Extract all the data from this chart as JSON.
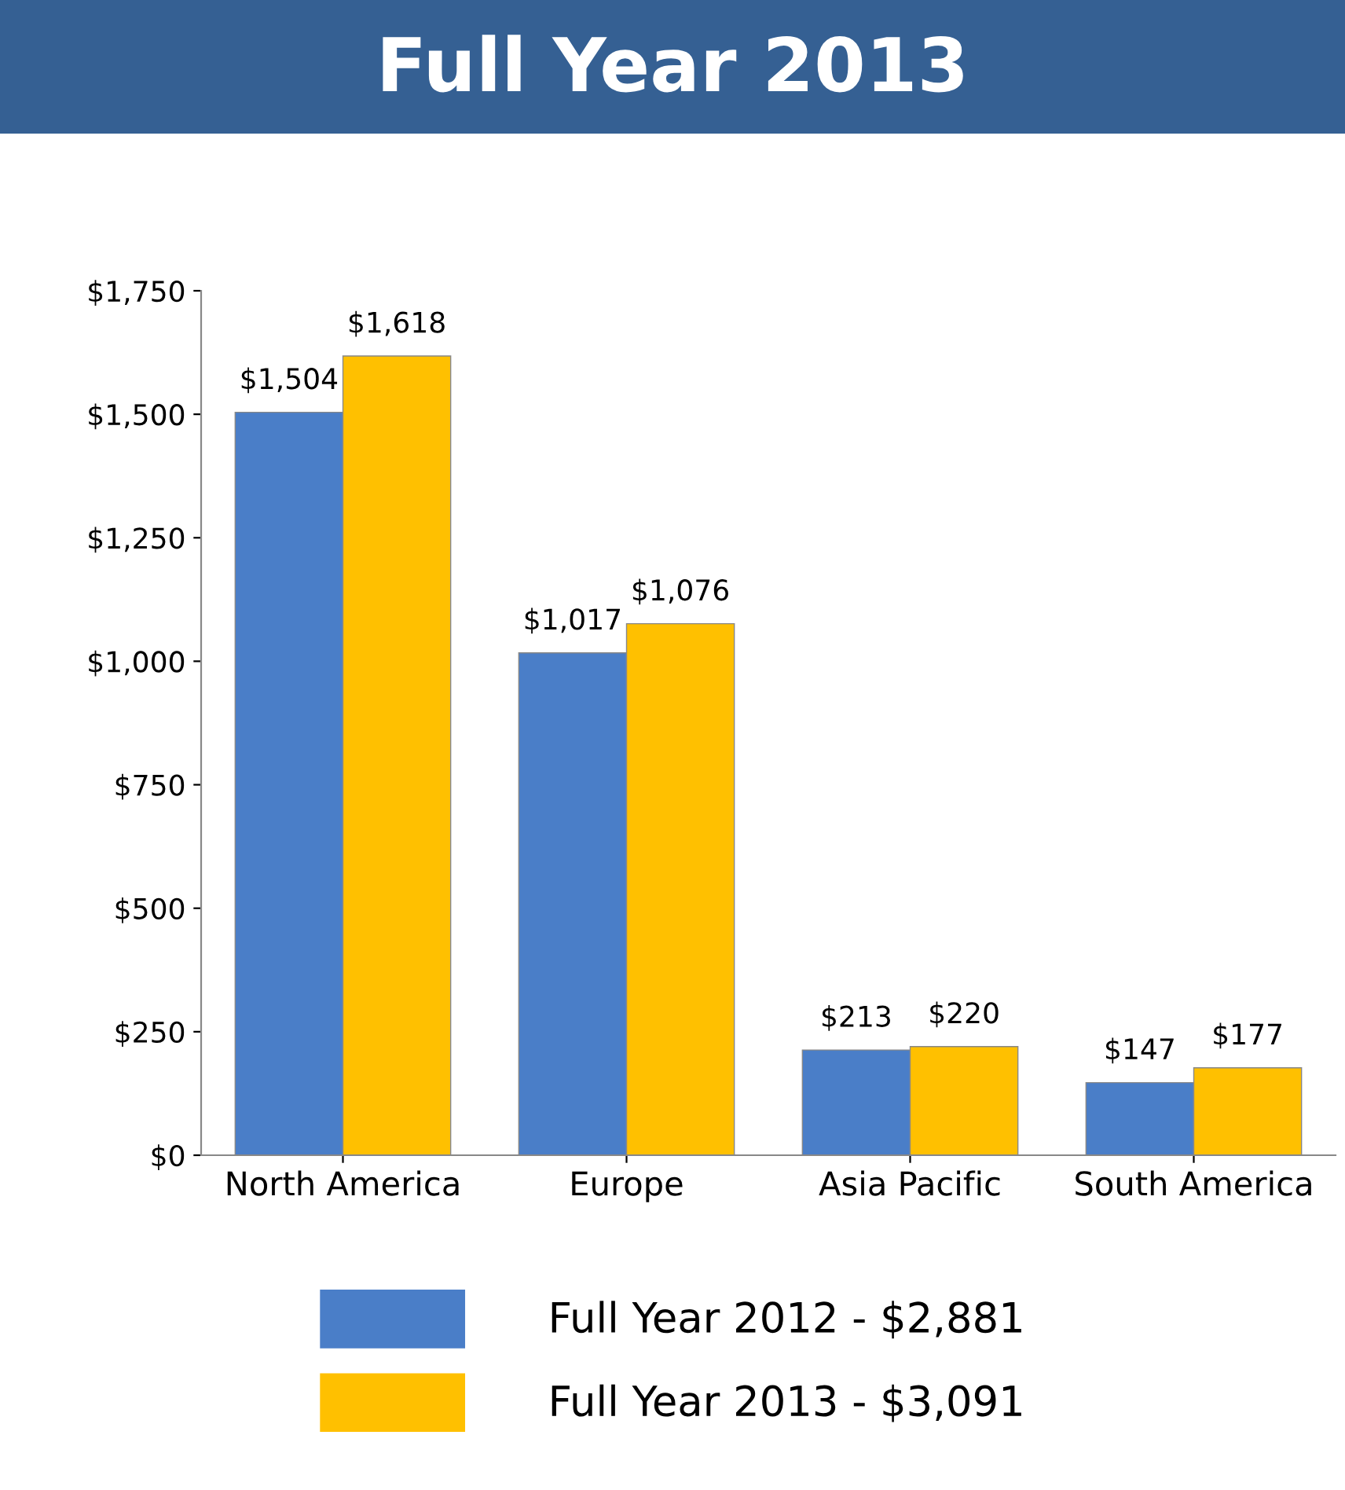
{
  "chart_data": {
    "type": "bar",
    "title": "Full Year 2013",
    "categories": [
      "North America",
      "Europe",
      "Asia Pacific",
      "South America"
    ],
    "series": [
      {
        "name": "Full Year 2012 - $2,881",
        "color": "#4a7ec8",
        "values": [
          1504,
          1017,
          213,
          147
        ],
        "value_labels": [
          "$1,504",
          "$1,017",
          "$213",
          "$147"
        ]
      },
      {
        "name": "Full Year 2013 - $3,091",
        "color": "#ffc000",
        "values": [
          1618,
          1076,
          220,
          177
        ],
        "value_labels": [
          "$1,618",
          "$1,076",
          "$220",
          "$177"
        ]
      }
    ],
    "ylim": [
      0,
      1750
    ],
    "yticks": [
      {
        "value": 0,
        "label": "$0"
      },
      {
        "value": 250,
        "label": "$250"
      },
      {
        "value": 500,
        "label": "$500"
      },
      {
        "value": 750,
        "label": "$750"
      },
      {
        "value": 1000,
        "label": "$1,000"
      },
      {
        "value": 1250,
        "label": "$1,250"
      },
      {
        "value": 1500,
        "label": "$1,500"
      },
      {
        "value": 1750,
        "label": "$1,750"
      }
    ],
    "grid": false,
    "legend": "bottom"
  }
}
